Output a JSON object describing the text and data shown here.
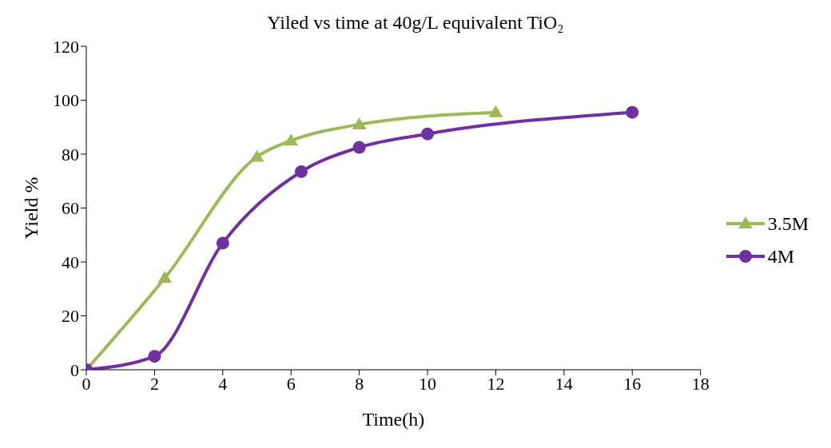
{
  "chart_data": {
    "type": "line",
    "title": "Yiled vs time at 40g/L equivalent TiO₂",
    "xlabel": "Time(h)",
    "ylabel": "Yield %",
    "xlim": [
      0,
      18
    ],
    "xticks": [
      0,
      2,
      4,
      6,
      8,
      10,
      12,
      14,
      16,
      18
    ],
    "ylim": [
      0,
      120
    ],
    "yticks": [
      0,
      20,
      40,
      60,
      80,
      100,
      120
    ],
    "grid": false,
    "legend": "right",
    "line_style": "solid",
    "series": [
      {
        "name": "3.5M",
        "color": "#9bbb59",
        "marker": "triangle",
        "x": [
          0,
          2.3,
          5,
          6,
          8,
          12
        ],
        "values": [
          0,
          34,
          79,
          85,
          91,
          95.5
        ]
      },
      {
        "name": "4M",
        "color": "#7030a0",
        "marker": "circle",
        "x": [
          0,
          2,
          4,
          6.3,
          8,
          10,
          16
        ],
        "values": [
          0,
          5,
          47,
          73.5,
          82.5,
          87.5,
          95.5
        ]
      }
    ]
  }
}
